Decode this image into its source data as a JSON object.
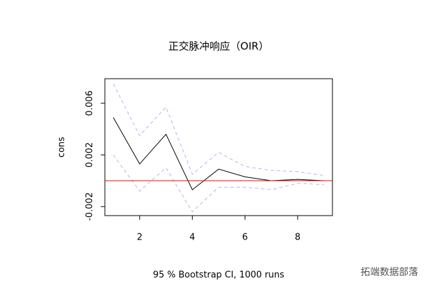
{
  "chart_data": {
    "type": "line",
    "title": "正交脉冲响应（OIR）",
    "y_label": "cons",
    "x_label": "95 % Bootstrap CI,  1000 runs",
    "x": [
      1,
      2,
      3,
      4,
      5,
      6,
      7,
      8,
      9
    ],
    "series": [
      {
        "color": "#000000",
        "dashed": false,
        "values": [
          0.0049,
          0.0013,
          0.0036,
          -0.0007,
          0.0009,
          0.0003,
          0.0,
          0.0001,
          0.0
        ]
      },
      {
        "color": "#b4b4ee",
        "dashed": true,
        "values": [
          0.0075,
          0.0035,
          0.0057,
          0.0005,
          0.0022,
          0.0011,
          0.0008,
          0.0007,
          0.0004
        ]
      },
      {
        "color": "#b4b4ee",
        "dashed": true,
        "values": [
          0.002,
          -0.0008,
          0.001,
          -0.0024,
          -0.0005,
          -0.0005,
          -0.0007,
          -0.0002,
          -0.0003
        ]
      }
    ],
    "hline": {
      "value": 0,
      "color": "#ff0000"
    },
    "xlim": [
      0.68,
      9.32
    ],
    "ylim": [
      -0.0027,
      0.0079
    ],
    "xticks": [
      2,
      4,
      6,
      8
    ],
    "yticks": [
      -0.002,
      0.002,
      0.006
    ],
    "watermark": "拓端数据部落"
  }
}
